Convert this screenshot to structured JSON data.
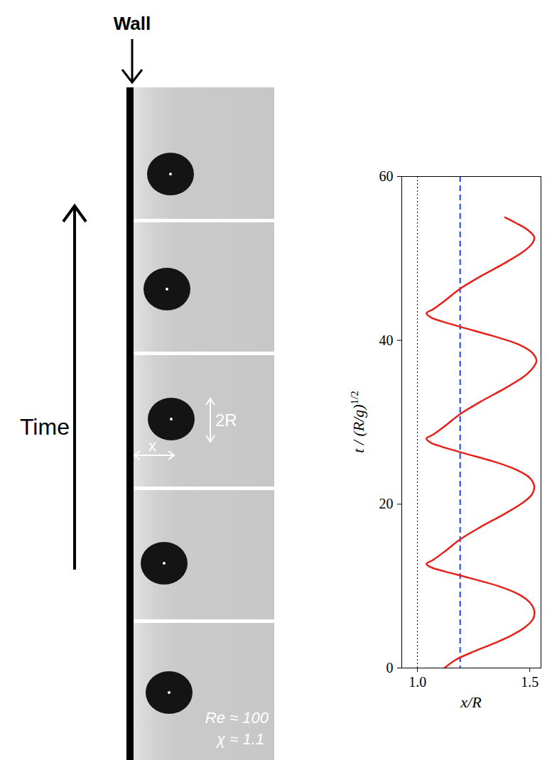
{
  "chart_data": {
    "type": "line",
    "x_label": "x/R",
    "y_label": "t / (R/g)1/2",
    "xlim": [
      0.93,
      1.55
    ],
    "ylim": [
      0,
      60
    ],
    "xticks": [
      {
        "value": 1.0,
        "label": "1.0"
      },
      {
        "value": 1.5,
        "label": "1.5"
      }
    ],
    "yticks": [
      0,
      20,
      40,
      60
    ],
    "color": "#e8201a",
    "x": [
      1.12,
      1.17,
      1.25,
      1.34,
      1.42,
      1.48,
      1.515,
      1.52,
      1.5,
      1.45,
      1.36,
      1.23,
      1.12,
      1.06,
      1.04,
      1.07,
      1.12,
      1.19,
      1.28,
      1.38,
      1.47,
      1.51,
      1.52,
      1.5,
      1.44,
      1.34,
      1.21,
      1.11,
      1.06,
      1.04,
      1.07,
      1.12,
      1.19,
      1.28,
      1.38,
      1.47,
      1.51,
      1.53,
      1.51,
      1.45,
      1.34,
      1.21,
      1.11,
      1.06,
      1.04,
      1.07,
      1.12,
      1.19,
      1.28,
      1.38,
      1.47,
      1.51,
      1.52,
      1.49,
      1.44,
      1.39
    ],
    "values": [
      0,
      1,
      2,
      3,
      4,
      5,
      6,
      7,
      8,
      9,
      10,
      11,
      11.8,
      12.3,
      12.7,
      13.2,
      14.2,
      15.7,
      17.2,
      18.7,
      20.2,
      21.2,
      22.2,
      23.2,
      24.2,
      25.2,
      26.2,
      27.0,
      27.5,
      28.0,
      28.5,
      29.5,
      31.0,
      32.5,
      34.0,
      35.5,
      36.5,
      37.5,
      38.5,
      39.5,
      40.5,
      41.5,
      42.3,
      42.8,
      43.3,
      43.8,
      44.8,
      46.3,
      47.8,
      49.3,
      50.8,
      51.8,
      52.6,
      53.5,
      54.3,
      55.0
    ],
    "reference_lines": [
      {
        "value": 1.0,
        "color": "#000000",
        "line_style": "dotted"
      },
      {
        "value": 1.19,
        "color": "#1f3fff",
        "line_style": "dashed"
      }
    ]
  },
  "photo_panel": {
    "wall_label": "Wall",
    "time_label": "Time",
    "size_label": "2R",
    "distance_label": "x",
    "reynolds_label": "Re ≈ 100",
    "ratio_label": "χ ≈ 1.1"
  }
}
